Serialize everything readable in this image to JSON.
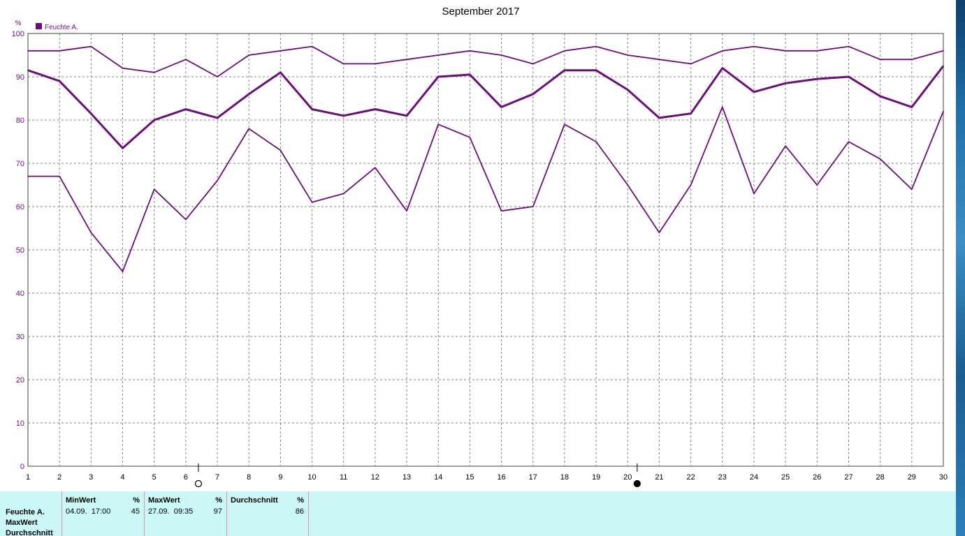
{
  "chart_data": {
    "type": "line",
    "title": "September 2017",
    "ylabel": "%",
    "xlabel": "",
    "legend": {
      "label": "Feuchte A.",
      "color": "#6a0f78",
      "placement": "top-left"
    },
    "ylim": [
      0,
      100
    ],
    "yticks": [
      0,
      10,
      20,
      30,
      40,
      50,
      60,
      70,
      80,
      90,
      100
    ],
    "grid": true,
    "x": [
      1,
      2,
      3,
      4,
      5,
      6,
      7,
      8,
      9,
      10,
      11,
      12,
      13,
      14,
      15,
      16,
      17,
      18,
      19,
      20,
      21,
      22,
      23,
      24,
      25,
      26,
      27,
      28,
      29,
      30
    ],
    "series": [
      {
        "values": [
          96,
          96,
          97,
          92,
          91,
          94,
          90,
          95,
          96,
          97,
          93,
          93,
          94,
          95,
          96,
          95,
          93,
          96,
          97,
          95,
          94,
          93,
          96,
          97,
          96,
          96,
          97,
          94,
          94,
          96
        ]
      },
      {
        "values": [
          91.5,
          89,
          81.5,
          73.5,
          80,
          82.5,
          80.5,
          86,
          91,
          82.5,
          81,
          82.5,
          81,
          90,
          90.5,
          83,
          86,
          91.5,
          91.5,
          87,
          80.5,
          81.5,
          92,
          86.5,
          88.5,
          89.5,
          90,
          85.5,
          83,
          92.5
        ]
      },
      {
        "values": [
          67,
          67,
          54,
          45,
          64,
          57,
          66,
          78,
          73,
          61,
          63,
          69,
          59,
          79,
          76,
          59,
          60,
          79,
          75,
          65,
          54,
          65,
          83,
          63,
          74,
          65,
          75,
          71,
          64,
          82
        ]
      }
    ],
    "moon_phases": [
      {
        "x": 6.4,
        "phase": "full-moon-icon"
      },
      {
        "x": 20.3,
        "phase": "new-moon-icon"
      }
    ]
  },
  "stats": {
    "row_labels": [
      "Feuchte A.",
      "MaxWert",
      "Durchschnitt"
    ],
    "min": {
      "header": "MinWert",
      "unit": "%",
      "when": "04.09.  17:00",
      "value": "45"
    },
    "max": {
      "header": "MaxWert",
      "unit": "%",
      "when": "27.09.  09:35",
      "value": "97"
    },
    "avg": {
      "header": "Durchschnitt",
      "unit": "%",
      "value": "86"
    }
  }
}
